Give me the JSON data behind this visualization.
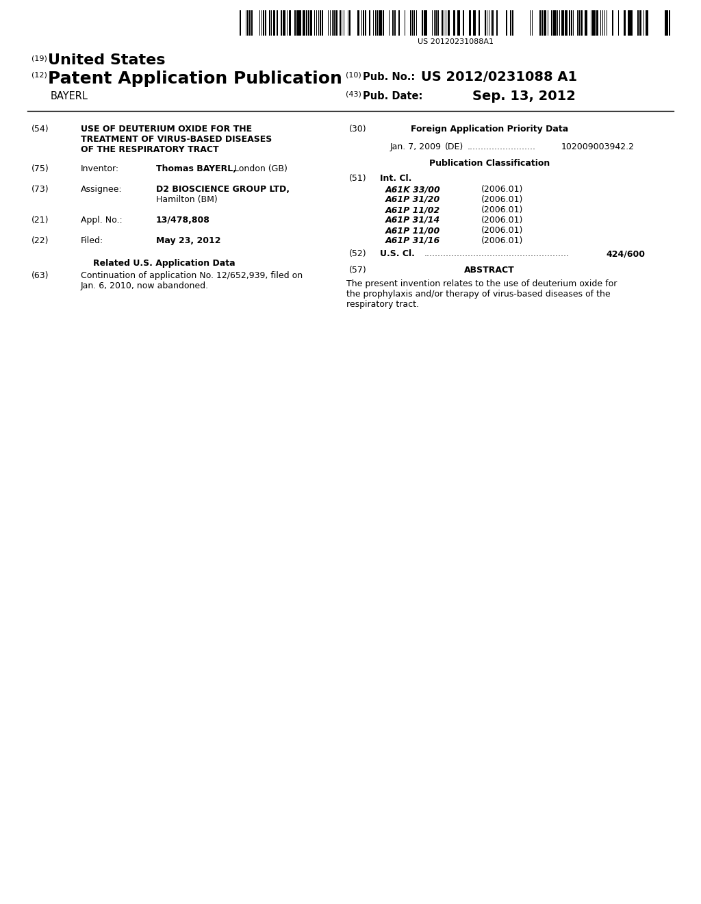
{
  "background_color": "#ffffff",
  "barcode_text": "US 20120231088A1",
  "label_19": "(19)",
  "united_states": "United States",
  "label_12": "(12)",
  "patent_app_pub": "Patent Application Publication",
  "label_10": "(10)",
  "pub_no_label": "Pub. No.:",
  "pub_no_value": "US 2012/0231088 A1",
  "inventor_name_label": "BAYERL",
  "label_43": "(43)",
  "pub_date_label": "Pub. Date:",
  "pub_date_value": "Sep. 13, 2012",
  "label_54": "(54)",
  "title_line1": "USE OF DEUTERIUM OXIDE FOR THE",
  "title_line2": "TREATMENT OF VIRUS-BASED DISEASES",
  "title_line3": "OF THE RESPIRATORY TRACT",
  "label_75": "(75)",
  "inventor_label": "Inventor:",
  "inventor_value_bold": "Thomas BAYERL,",
  "inventor_value_normal": " London (GB)",
  "label_73": "(73)",
  "assignee_label": "Assignee:",
  "assignee_value_bold": "D2 BIOSCIENCE GROUP LTD,",
  "assignee_value_line2": "Hamilton (BM)",
  "label_21": "(21)",
  "appl_no_label": "Appl. No.:",
  "appl_no_value": "13/478,808",
  "label_22": "(22)",
  "filed_label": "Filed:",
  "filed_value": "May 23, 2012",
  "related_us_header": "Related U.S. Application Data",
  "label_63": "(63)",
  "related_us_line1": "Continuation of application No. 12/652,939, filed on",
  "related_us_line2": "Jan. 6, 2010, now abandoned.",
  "label_30": "(30)",
  "foreign_app_header": "Foreign Application Priority Data",
  "foreign_app_line": "Jan. 7, 2009     (DE)  .........................  102009003942.2",
  "pub_class_header": "Publication Classification",
  "label_51": "(51)",
  "int_cl_label": "Int. Cl.",
  "int_cl_entries": [
    [
      "A61K 33/00",
      "(2006.01)"
    ],
    [
      "A61P 31/20",
      "(2006.01)"
    ],
    [
      "A61P 11/02",
      "(2006.01)"
    ],
    [
      "A61P 31/14",
      "(2006.01)"
    ],
    [
      "A61P 11/00",
      "(2006.01)"
    ],
    [
      "A61P 31/16",
      "(2006.01)"
    ]
  ],
  "label_52": "(52)",
  "us_cl_label": "U.S. Cl.",
  "us_cl_dots": ".....................................................",
  "us_cl_value": "424/600",
  "label_57": "(57)",
  "abstract_header": "ABSTRACT",
  "abstract_line1": "The present invention relates to the use of deuterium oxide for",
  "abstract_line2": "the prophylaxis and/or therapy of virus-based diseases of the",
  "abstract_line3": "respiratory tract."
}
